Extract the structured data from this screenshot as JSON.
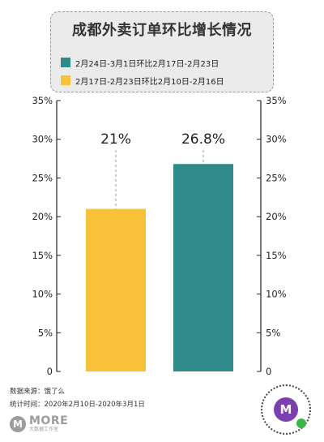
{
  "header": {
    "title": "成都外卖订单环比增长情况"
  },
  "legend": [
    {
      "label": "2月24日-3月1日环比2月17日-2月23日",
      "color": "#2f8a8a"
    },
    {
      "label": "2月17日-2月23日环比2月10日-2月16日",
      "color": "#f7c23a"
    }
  ],
  "chart_data": {
    "type": "bar",
    "title": "成都外卖订单环比增长情况",
    "categories": [
      "2月17日-2月23日环比2月10日-2月16日",
      "2月24日-3月1日环比2月17日-2月23日"
    ],
    "values": [
      21,
      26.8
    ],
    "data_labels": [
      "21%",
      "26.8%"
    ],
    "colors": [
      "#f7c23a",
      "#2f8a8a"
    ],
    "ylim": [
      0,
      35
    ],
    "yticks": [
      "0",
      "5%",
      "10%",
      "15%",
      "20%",
      "25%",
      "30%",
      "35%"
    ],
    "ytick_values": [
      0,
      5,
      10,
      15,
      20,
      25,
      30,
      35
    ],
    "y_axes": "both",
    "grid": false,
    "xlabel": "",
    "ylabel": ""
  },
  "footer": {
    "source": "数据来源：饿了么",
    "period": "统计时间：2020年2月10日-2020年3月1日"
  },
  "logo": {
    "mark": "M",
    "text": "MORE",
    "subtext": "大数据工作室"
  },
  "qr": {
    "mark": "M"
  }
}
